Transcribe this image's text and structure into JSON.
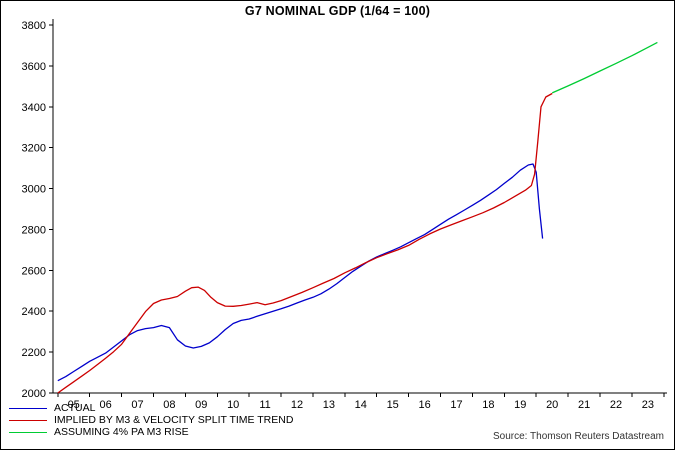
{
  "source": "Source: Thomson Reuters Datastream",
  "chart_data": {
    "type": "line",
    "title": "G7 NOMINAL GDP (1/64 = 100)",
    "grid": false,
    "legend_position": "bottom-left",
    "x_axis": {
      "start_year": 2005,
      "labels": [
        "05",
        "06",
        "07",
        "08",
        "09",
        "10",
        "11",
        "12",
        "13",
        "14",
        "15",
        "16",
        "17",
        "18",
        "19",
        "20",
        "21",
        "22",
        "23"
      ]
    },
    "y_axis": {
      "min": 2000,
      "max": 3800,
      "tick_step": 200
    },
    "series": [
      {
        "name": "ACTUAL",
        "color": "#0000cc",
        "points": [
          [
            2005.0,
            2060
          ],
          [
            2005.25,
            2080
          ],
          [
            2005.5,
            2105
          ],
          [
            2005.75,
            2130
          ],
          [
            2006.0,
            2155
          ],
          [
            2006.25,
            2175
          ],
          [
            2006.5,
            2195
          ],
          [
            2006.75,
            2225
          ],
          [
            2007.0,
            2255
          ],
          [
            2007.25,
            2285
          ],
          [
            2007.5,
            2305
          ],
          [
            2007.75,
            2315
          ],
          [
            2008.0,
            2320
          ],
          [
            2008.25,
            2330
          ],
          [
            2008.5,
            2320
          ],
          [
            2008.75,
            2260
          ],
          [
            2009.0,
            2230
          ],
          [
            2009.25,
            2220
          ],
          [
            2009.5,
            2228
          ],
          [
            2009.75,
            2245
          ],
          [
            2010.0,
            2275
          ],
          [
            2010.25,
            2310
          ],
          [
            2010.5,
            2340
          ],
          [
            2010.75,
            2355
          ],
          [
            2011.0,
            2362
          ],
          [
            2011.25,
            2375
          ],
          [
            2011.5,
            2388
          ],
          [
            2011.75,
            2400
          ],
          [
            2012.0,
            2412
          ],
          [
            2012.25,
            2425
          ],
          [
            2012.5,
            2440
          ],
          [
            2012.75,
            2455
          ],
          [
            2013.0,
            2468
          ],
          [
            2013.25,
            2485
          ],
          [
            2013.5,
            2508
          ],
          [
            2013.75,
            2535
          ],
          [
            2014.0,
            2565
          ],
          [
            2014.25,
            2595
          ],
          [
            2014.5,
            2620
          ],
          [
            2014.75,
            2645
          ],
          [
            2015.0,
            2665
          ],
          [
            2015.25,
            2682
          ],
          [
            2015.5,
            2698
          ],
          [
            2015.75,
            2715
          ],
          [
            2016.0,
            2735
          ],
          [
            2016.25,
            2755
          ],
          [
            2016.5,
            2775
          ],
          [
            2016.75,
            2800
          ],
          [
            2017.0,
            2825
          ],
          [
            2017.25,
            2850
          ],
          [
            2017.5,
            2872
          ],
          [
            2017.75,
            2895
          ],
          [
            2018.0,
            2918
          ],
          [
            2018.25,
            2942
          ],
          [
            2018.5,
            2968
          ],
          [
            2018.75,
            2995
          ],
          [
            2019.0,
            3025
          ],
          [
            2019.25,
            3055
          ],
          [
            2019.5,
            3090
          ],
          [
            2019.75,
            3115
          ],
          [
            2019.9,
            3120
          ],
          [
            2020.0,
            3080
          ],
          [
            2020.1,
            2900
          ],
          [
            2020.2,
            2755
          ]
        ]
      },
      {
        "name": "IMPLIED BY M3 & VELOCITY SPLIT TIME TREND",
        "color": "#cc0000",
        "points": [
          [
            2005.0,
            2000
          ],
          [
            2005.25,
            2028
          ],
          [
            2005.5,
            2055
          ],
          [
            2005.75,
            2082
          ],
          [
            2006.0,
            2110
          ],
          [
            2006.25,
            2140
          ],
          [
            2006.5,
            2170
          ],
          [
            2006.75,
            2202
          ],
          [
            2007.0,
            2238
          ],
          [
            2007.25,
            2292
          ],
          [
            2007.5,
            2345
          ],
          [
            2007.75,
            2398
          ],
          [
            2008.0,
            2438
          ],
          [
            2008.25,
            2455
          ],
          [
            2008.5,
            2462
          ],
          [
            2008.75,
            2472
          ],
          [
            2009.0,
            2498
          ],
          [
            2009.2,
            2515
          ],
          [
            2009.4,
            2518
          ],
          [
            2009.6,
            2502
          ],
          [
            2009.8,
            2468
          ],
          [
            2010.0,
            2442
          ],
          [
            2010.25,
            2425
          ],
          [
            2010.5,
            2424
          ],
          [
            2010.75,
            2428
          ],
          [
            2011.0,
            2435
          ],
          [
            2011.25,
            2442
          ],
          [
            2011.5,
            2432
          ],
          [
            2011.75,
            2440
          ],
          [
            2012.0,
            2452
          ],
          [
            2012.33,
            2472
          ],
          [
            2012.66,
            2492
          ],
          [
            2013.0,
            2515
          ],
          [
            2013.33,
            2538
          ],
          [
            2013.66,
            2560
          ],
          [
            2014.0,
            2588
          ],
          [
            2014.33,
            2612
          ],
          [
            2014.66,
            2638
          ],
          [
            2015.0,
            2662
          ],
          [
            2015.33,
            2682
          ],
          [
            2015.66,
            2700
          ],
          [
            2016.0,
            2722
          ],
          [
            2016.33,
            2752
          ],
          [
            2016.66,
            2778
          ],
          [
            2017.0,
            2802
          ],
          [
            2017.33,
            2822
          ],
          [
            2017.66,
            2842
          ],
          [
            2018.0,
            2862
          ],
          [
            2018.33,
            2882
          ],
          [
            2018.66,
            2905
          ],
          [
            2019.0,
            2932
          ],
          [
            2019.33,
            2962
          ],
          [
            2019.66,
            2992
          ],
          [
            2019.85,
            3015
          ],
          [
            2019.95,
            3070
          ],
          [
            2020.05,
            3230
          ],
          [
            2020.15,
            3400
          ],
          [
            2020.3,
            3448
          ],
          [
            2020.5,
            3465
          ]
        ]
      },
      {
        "name": "ASSUMING 4% PA M3 RISE",
        "color": "#00cc33",
        "points": [
          [
            2020.5,
            3468
          ],
          [
            2021.0,
            3502
          ],
          [
            2021.5,
            3538
          ],
          [
            2022.0,
            3575
          ],
          [
            2022.5,
            3612
          ],
          [
            2023.0,
            3650
          ],
          [
            2023.4,
            3682
          ],
          [
            2023.8,
            3715
          ]
        ]
      }
    ]
  }
}
